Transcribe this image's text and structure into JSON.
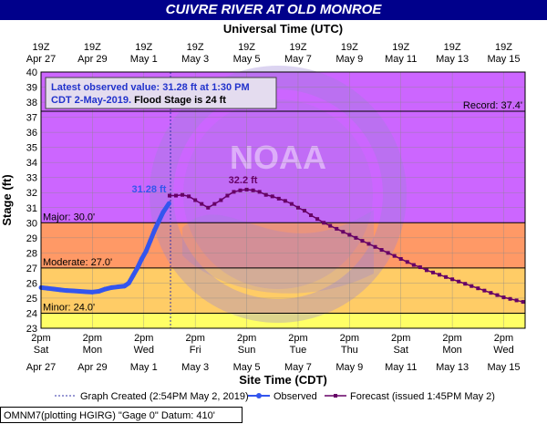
{
  "page": {
    "title": "CUIVRE RIVER AT OLD MONROE"
  },
  "colors": {
    "title_bg": "#00008b",
    "title_text": "#ffffff",
    "above_major": "#cc66ff",
    "major_band": "#ff5555",
    "moderate_band": "#ff9966",
    "minor_band": "#ffcc66",
    "below_minor": "#ffff66",
    "observed": "#3355ee",
    "forecast": "#660066",
    "watermark": "#9c85d8"
  },
  "chart_data": {
    "type": "line",
    "top_axis_title": "Universal Time (UTC)",
    "xlabel": "Site Time (CDT)",
    "ylabel": "Stage (ft)",
    "ylim": [
      23,
      40
    ],
    "xlim_days": [
      "2019-04-27 14:00",
      "2019-05-16 10:00"
    ],
    "yticks": [
      23,
      24,
      25,
      26,
      27,
      28,
      29,
      30,
      31,
      32,
      33,
      34,
      35,
      36,
      37,
      38,
      39,
      40
    ],
    "grid": true,
    "legend_position": "bottom",
    "top_ticks": [
      {
        "hour": "19Z",
        "date": "Apr 27"
      },
      {
        "hour": "19Z",
        "date": "Apr 29"
      },
      {
        "hour": "19Z",
        "date": "May 1"
      },
      {
        "hour": "19Z",
        "date": "May 3"
      },
      {
        "hour": "19Z",
        "date": "May 5"
      },
      {
        "hour": "19Z",
        "date": "May 7"
      },
      {
        "hour": "19Z",
        "date": "May 9"
      },
      {
        "hour": "19Z",
        "date": "May 11"
      },
      {
        "hour": "19Z",
        "date": "May 13"
      },
      {
        "hour": "19Z",
        "date": "May 15"
      }
    ],
    "bottom_ticks": [
      {
        "time": "2pm",
        "day": "Sat",
        "date": "Apr 27"
      },
      {
        "time": "2pm",
        "day": "Mon",
        "date": "Apr 29"
      },
      {
        "time": "2pm",
        "day": "Wed",
        "date": "May 1"
      },
      {
        "time": "2pm",
        "day": "Fri",
        "date": "May 3"
      },
      {
        "time": "2pm",
        "day": "Sun",
        "date": "May 5"
      },
      {
        "time": "2pm",
        "day": "Tue",
        "date": "May 7"
      },
      {
        "time": "2pm",
        "day": "Thu",
        "date": "May 9"
      },
      {
        "time": "2pm",
        "day": "Sat",
        "date": "May 11"
      },
      {
        "time": "2pm",
        "day": "Mon",
        "date": "May 13"
      },
      {
        "time": "2pm",
        "day": "Wed",
        "date": "May 15"
      }
    ],
    "flood_categories": [
      {
        "label": "Minor: 24.0'",
        "stage": 24.0
      },
      {
        "label": "Moderate: 27.0'",
        "stage": 27.0
      },
      {
        "label": "Major: 30.0'",
        "stage": 30.0
      },
      {
        "label": "Record: 37.4'",
        "stage": 37.4
      }
    ],
    "annotation_box": {
      "line1": "Latest observed value: 31.28 ft at 1:30 PM",
      "line2_prefix": "CDT 2-May-2019.",
      "line2_suffix": "Flood Stage is 24 ft"
    },
    "observed_label": "31.28 ft",
    "crest_label": "32.2 ft",
    "watermark_text": "NOAA",
    "graph_created": "2019-05-02 14:54",
    "series": [
      {
        "name": "Observed",
        "values": [
          [
            "2019-04-27 14:00",
            25.7
          ],
          [
            "2019-04-27 20:00",
            25.65
          ],
          [
            "2019-04-28 02:00",
            25.6
          ],
          [
            "2019-04-28 08:00",
            25.55
          ],
          [
            "2019-04-28 14:00",
            25.5
          ],
          [
            "2019-04-28 20:00",
            25.48
          ],
          [
            "2019-04-29 02:00",
            25.45
          ],
          [
            "2019-04-29 08:00",
            25.42
          ],
          [
            "2019-04-29 14:00",
            25.4
          ],
          [
            "2019-04-29 20:00",
            25.45
          ],
          [
            "2019-04-30 02:00",
            25.6
          ],
          [
            "2019-04-30 08:00",
            25.7
          ],
          [
            "2019-04-30 14:00",
            25.75
          ],
          [
            "2019-04-30 20:00",
            25.8
          ],
          [
            "2019-05-01 00:00",
            26.0
          ],
          [
            "2019-05-01 04:00",
            26.5
          ],
          [
            "2019-05-01 08:00",
            27.0
          ],
          [
            "2019-05-01 12:00",
            27.6
          ],
          [
            "2019-05-01 16:00",
            28.1
          ],
          [
            "2019-05-01 20:00",
            28.8
          ],
          [
            "2019-05-02 00:00",
            29.5
          ],
          [
            "2019-05-02 04:00",
            30.1
          ],
          [
            "2019-05-02 08:00",
            30.7
          ],
          [
            "2019-05-02 13:30",
            31.28
          ]
        ]
      },
      {
        "name": "Forecast (issued 1:45PM May 2)",
        "values": [
          [
            "2019-05-02 14:00",
            31.8
          ],
          [
            "2019-05-02 20:00",
            31.8
          ],
          [
            "2019-05-03 02:00",
            31.85
          ],
          [
            "2019-05-03 08:00",
            31.75
          ],
          [
            "2019-05-03 14:00",
            31.5
          ],
          [
            "2019-05-03 20:00",
            31.25
          ],
          [
            "2019-05-04 02:00",
            31.0
          ],
          [
            "2019-05-04 08:00",
            31.25
          ],
          [
            "2019-05-04 14:00",
            31.5
          ],
          [
            "2019-05-04 20:00",
            31.8
          ],
          [
            "2019-05-05 02:00",
            32.05
          ],
          [
            "2019-05-05 08:00",
            32.15
          ],
          [
            "2019-05-05 14:00",
            32.2
          ],
          [
            "2019-05-05 20:00",
            32.15
          ],
          [
            "2019-05-06 02:00",
            32.05
          ],
          [
            "2019-05-06 08:00",
            31.85
          ],
          [
            "2019-05-06 14:00",
            31.75
          ],
          [
            "2019-05-06 20:00",
            31.6
          ],
          [
            "2019-05-07 02:00",
            31.45
          ],
          [
            "2019-05-07 08:00",
            31.25
          ],
          [
            "2019-05-07 14:00",
            31.0
          ],
          [
            "2019-05-07 20:00",
            30.8
          ],
          [
            "2019-05-08 02:00",
            30.5
          ],
          [
            "2019-05-08 08:00",
            30.25
          ],
          [
            "2019-05-08 14:00",
            30.0
          ],
          [
            "2019-05-08 20:00",
            29.8
          ],
          [
            "2019-05-09 02:00",
            29.6
          ],
          [
            "2019-05-09 08:00",
            29.4
          ],
          [
            "2019-05-09 14:00",
            29.2
          ],
          [
            "2019-05-09 20:00",
            29.0
          ],
          [
            "2019-05-10 02:00",
            28.8
          ],
          [
            "2019-05-10 08:00",
            28.6
          ],
          [
            "2019-05-10 14:00",
            28.4
          ],
          [
            "2019-05-10 20:00",
            28.2
          ],
          [
            "2019-05-11 02:00",
            28.0
          ],
          [
            "2019-05-11 08:00",
            27.8
          ],
          [
            "2019-05-11 14:00",
            27.6
          ],
          [
            "2019-05-11 20:00",
            27.4
          ],
          [
            "2019-05-12 02:00",
            27.2
          ],
          [
            "2019-05-12 08:00",
            27.05
          ],
          [
            "2019-05-12 14:00",
            26.85
          ],
          [
            "2019-05-12 20:00",
            26.7
          ],
          [
            "2019-05-13 02:00",
            26.55
          ],
          [
            "2019-05-13 08:00",
            26.4
          ],
          [
            "2019-05-13 14:00",
            26.25
          ],
          [
            "2019-05-13 20:00",
            26.1
          ],
          [
            "2019-05-14 02:00",
            25.95
          ],
          [
            "2019-05-14 08:00",
            25.8
          ],
          [
            "2019-05-14 14:00",
            25.65
          ],
          [
            "2019-05-14 20:00",
            25.5
          ],
          [
            "2019-05-15 02:00",
            25.35
          ],
          [
            "2019-05-15 08:00",
            25.2
          ],
          [
            "2019-05-15 14:00",
            25.05
          ],
          [
            "2019-05-15 20:00",
            24.95
          ],
          [
            "2019-05-16 02:00",
            24.85
          ],
          [
            "2019-05-16 08:00",
            24.75
          ]
        ]
      }
    ]
  },
  "legend": {
    "created_label": "Graph Created (2:54PM May 2, 2019)",
    "observed_label": "Observed",
    "forecast_label": "Forecast (issued 1:45PM May 2)"
  },
  "footer": {
    "station_info": "OMNM7(plotting HGIRG) \"Gage 0\" Datum: 410'"
  }
}
